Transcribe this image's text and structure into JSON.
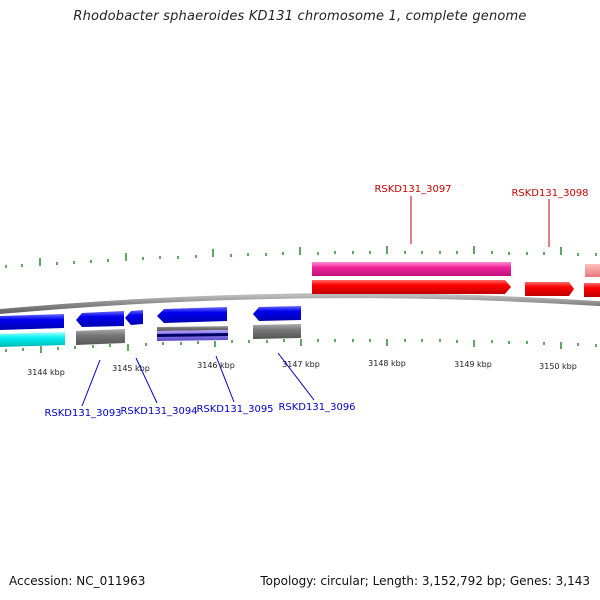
{
  "title": "Rhodobacter sphaeroides KD131 chromosome 1, complete genome",
  "colors": {
    "backbone": "#888888",
    "tick": "#2a8a2a",
    "forward_label": "#cc0000",
    "reverse_label": "#0000cc"
  },
  "scale_labels": [
    "3144 kbp",
    "3145 kbp",
    "3146 kbp",
    "3147 kbp",
    "3148 kbp",
    "3149 kbp",
    "3150 kbp"
  ],
  "gene_labels": [
    {
      "text": "RSKD131_3097",
      "strand": "forward"
    },
    {
      "text": "RSKD131_3098",
      "strand": "forward"
    },
    {
      "text": "RSKD131_3093",
      "strand": "reverse"
    },
    {
      "text": "RSKD131_3094",
      "strand": "reverse"
    },
    {
      "text": "RSKD131_3095",
      "strand": "reverse"
    },
    {
      "text": "RSKD131_3096",
      "strand": "reverse"
    }
  ],
  "footer": {
    "accession": "Accession: NC_011963",
    "summary": "Topology: circular; Length: 3,152,792 bp; Genes: 3,143"
  }
}
